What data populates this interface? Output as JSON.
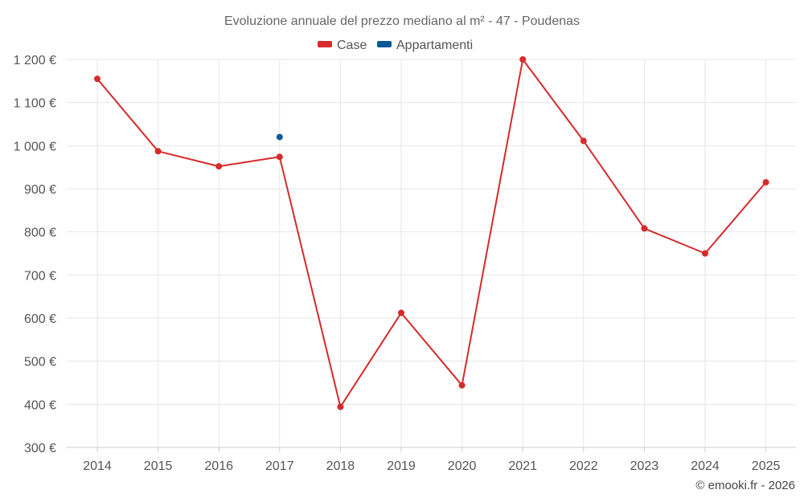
{
  "chart_data": {
    "type": "line",
    "title": "Evoluzione annuale del prezzo mediano al m² - 47 - Poudenas",
    "categories": [
      "2014",
      "2015",
      "2016",
      "2017",
      "2018",
      "2019",
      "2020",
      "2021",
      "2022",
      "2023",
      "2024",
      "2025"
    ],
    "y_tick_labels": [
      "1 200 €",
      "1 100 €",
      "1 000 €",
      "900 €",
      "800 €",
      "700 €",
      "600 €",
      "500 €",
      "400 €",
      "300 €"
    ],
    "y_ticks": [
      1200,
      1100,
      1000,
      900,
      800,
      700,
      600,
      500,
      400,
      300
    ],
    "ylim": [
      300,
      1200
    ],
    "grid": true,
    "legend_position": "top-center",
    "series": [
      {
        "name": "Case",
        "color": "#d62b2b",
        "values": [
          1155,
          987,
          952,
          974,
          394,
          612,
          444,
          1200,
          1011,
          808,
          750,
          915
        ]
      },
      {
        "name": "Appartamenti",
        "color": "#0a5a99",
        "values": [
          null,
          null,
          null,
          1020,
          null,
          null,
          null,
          null,
          null,
          null,
          null,
          null
        ]
      }
    ]
  },
  "credit": "© emooki.fr - 2026"
}
